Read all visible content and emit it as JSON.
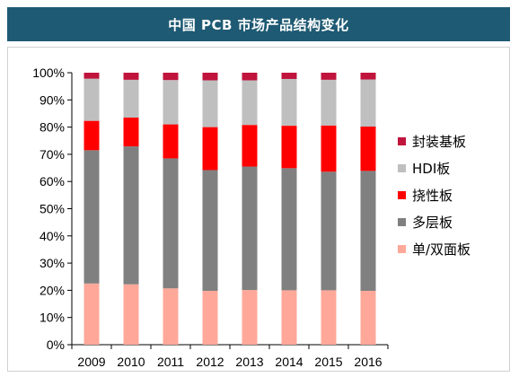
{
  "title": "中国 PCB 市场产品结构变化",
  "chart_data": {
    "type": "bar",
    "stacked": true,
    "percent": true,
    "categories": [
      "2009",
      "2010",
      "2011",
      "2012",
      "2013",
      "2014",
      "2015",
      "2016"
    ],
    "ylim": [
      0,
      100
    ],
    "yticks": [
      "0%",
      "10%",
      "20%",
      "30%",
      "40%",
      "50%",
      "60%",
      "70%",
      "80%",
      "90%",
      "100%"
    ],
    "ytick_values": [
      0,
      10,
      20,
      30,
      40,
      50,
      60,
      70,
      80,
      90,
      100
    ],
    "series": [
      {
        "name": "单/双面板",
        "color": "#ffa899",
        "values": [
          22.5,
          22.2,
          20.7,
          19.8,
          20.1,
          20.0,
          20.0,
          19.8
        ]
      },
      {
        "name": "多层板",
        "color": "#808080",
        "values": [
          49.0,
          50.7,
          47.8,
          44.4,
          45.4,
          44.9,
          43.6,
          44.1
        ]
      },
      {
        "name": "挠性板",
        "color": "#ff0000",
        "values": [
          10.8,
          10.6,
          12.5,
          15.8,
          15.3,
          15.6,
          17.0,
          16.3
        ]
      },
      {
        "name": "HDI板",
        "color": "#bfbfbf",
        "values": [
          15.5,
          13.9,
          16.3,
          17.2,
          16.4,
          17.2,
          16.8,
          17.3
        ]
      },
      {
        "name": "封装基板",
        "color": "#c0143c",
        "values": [
          2.2,
          2.6,
          2.7,
          2.8,
          2.8,
          2.3,
          2.6,
          2.5
        ]
      }
    ],
    "legend_order": [
      "封装基板",
      "HDI板",
      "挠性板",
      "多层板",
      "单/双面板"
    ],
    "legend_position": "right"
  }
}
